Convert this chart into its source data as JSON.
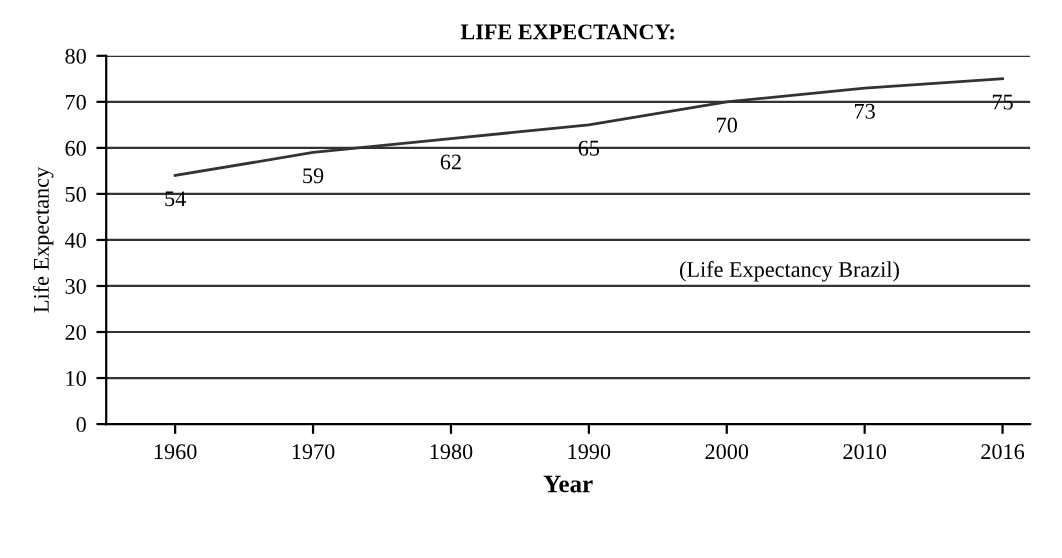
{
  "chart_data": {
    "type": "line",
    "title": "LIFE EXPECTANCY:",
    "xlabel": "Year",
    "ylabel": "Life Expectancy",
    "categories": [
      "1960",
      "1970",
      "1980",
      "1990",
      "2000",
      "2010",
      "2016"
    ],
    "series": [
      {
        "color": "#333333",
        "values": [
          54,
          59,
          62,
          65,
          70,
          73,
          75
        ]
      }
    ],
    "ylim": [
      0,
      80
    ],
    "yticks": [
      0,
      10,
      20,
      30,
      40,
      50,
      60,
      70,
      80
    ],
    "grid": "y",
    "data_labels": true,
    "marker": "none",
    "line_style": "solid",
    "annotations": [
      "(Life Expectancy Brazil)"
    ]
  }
}
